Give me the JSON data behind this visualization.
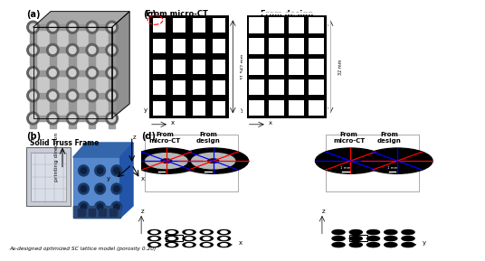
{
  "bg_color": "#ffffff",
  "panel_labels": [
    "(a)",
    "(b)",
    "(c)",
    "(d)"
  ],
  "panel_c_labels": [
    "From micro-CT",
    "From design"
  ],
  "panel_c_measurements": [
    "31.542 mm",
    "32 mm"
  ],
  "panel_d_labels_left": [
    "From\nmicro-CT",
    "From\ndesign"
  ],
  "panel_d_labels_right": [
    "From\nmicro-CT",
    "From\ndesign"
  ],
  "label_b_solid": "Solid Truss Frame",
  "label_b_bottom": "As-designed optimized SC lattice model (porosity 0.20)",
  "printing_direction": "printing direction"
}
